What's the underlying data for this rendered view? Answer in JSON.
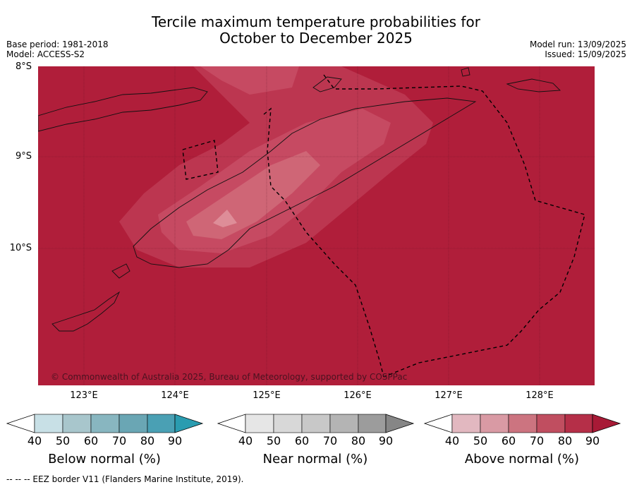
{
  "title_line1": "Tercile maximum temperature probabilities for",
  "title_line2": "October to December 2025",
  "meta_left": [
    "Base period: 1981-2018",
    "Model: ACCESS-S2"
  ],
  "meta_right": [
    "Model run: 13/09/2025",
    "Issued: 15/09/2025"
  ],
  "lat_labels": [
    "8°S",
    "9°S",
    "10°S"
  ],
  "lon_labels": [
    "123°E",
    "124°E",
    "125°E",
    "126°E",
    "127°E",
    "128°E"
  ],
  "copyright": "© Commonwealth of Australia 2025, Bureau of Meteorology, supported by COSPPac",
  "footer": "--  --  -- EEZ border V11 (Flanders Marine Institute, 2019).",
  "colors": {
    "ocean_fill": "#b01e3a",
    "above_levels": [
      "#e2b8c0",
      "#d99aa4",
      "#cc7480",
      "#c04e60",
      "#b52f48",
      "#a81a36"
    ],
    "below_levels": [
      "#c8e0e6",
      "#a8c6cc",
      "#88b6c0",
      "#6aa6b4",
      "#4aa0b4",
      "#2a9cb0"
    ],
    "near_levels": [
      "#e6e6e6",
      "#d8d8d8",
      "#c8c8c8",
      "#b4b4b4",
      "#9c9c9c",
      "#868686"
    ]
  },
  "colorbars": [
    {
      "label": "Below normal (%)",
      "ticks": [
        "40",
        "50",
        "60",
        "70",
        "80",
        "90"
      ]
    },
    {
      "label": "Near normal (%)",
      "ticks": [
        "40",
        "50",
        "60",
        "70",
        "80",
        "90"
      ]
    },
    {
      "label": "Above normal (%)",
      "ticks": [
        "40",
        "50",
        "60",
        "70",
        "80",
        "90"
      ]
    }
  ]
}
